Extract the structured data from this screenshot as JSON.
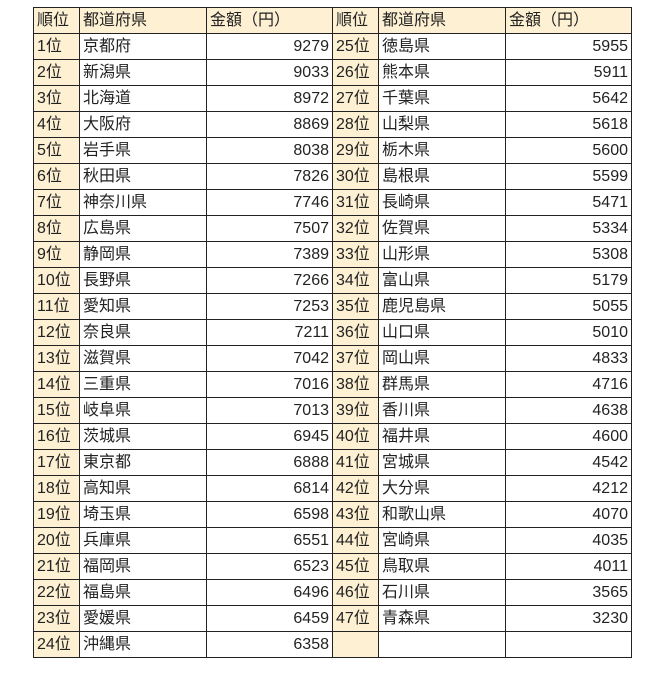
{
  "header": {
    "rank": "順位",
    "prefecture": "都道府県",
    "amount": "金額（円）"
  },
  "left": [
    {
      "rank": "1位",
      "prefecture": "京都府",
      "amount": "9279"
    },
    {
      "rank": "2位",
      "prefecture": "新潟県",
      "amount": "9033"
    },
    {
      "rank": "3位",
      "prefecture": "北海道",
      "amount": "8972"
    },
    {
      "rank": "4位",
      "prefecture": "大阪府",
      "amount": "8869"
    },
    {
      "rank": "5位",
      "prefecture": "岩手県",
      "amount": "8038"
    },
    {
      "rank": "6位",
      "prefecture": "秋田県",
      "amount": "7826"
    },
    {
      "rank": "7位",
      "prefecture": "神奈川県",
      "amount": "7746"
    },
    {
      "rank": "8位",
      "prefecture": "広島県",
      "amount": "7507"
    },
    {
      "rank": "9位",
      "prefecture": "静岡県",
      "amount": "7389"
    },
    {
      "rank": "10位",
      "prefecture": "長野県",
      "amount": "7266"
    },
    {
      "rank": "11位",
      "prefecture": "愛知県",
      "amount": "7253"
    },
    {
      "rank": "12位",
      "prefecture": "奈良県",
      "amount": "7211"
    },
    {
      "rank": "13位",
      "prefecture": "滋賀県",
      "amount": "7042"
    },
    {
      "rank": "14位",
      "prefecture": "三重県",
      "amount": "7016"
    },
    {
      "rank": "15位",
      "prefecture": "岐阜県",
      "amount": "7013"
    },
    {
      "rank": "16位",
      "prefecture": "茨城県",
      "amount": "6945"
    },
    {
      "rank": "17位",
      "prefecture": "東京都",
      "amount": "6888"
    },
    {
      "rank": "18位",
      "prefecture": "高知県",
      "amount": "6814"
    },
    {
      "rank": "19位",
      "prefecture": "埼玉県",
      "amount": "6598"
    },
    {
      "rank": "20位",
      "prefecture": "兵庫県",
      "amount": "6551"
    },
    {
      "rank": "21位",
      "prefecture": "福岡県",
      "amount": "6523"
    },
    {
      "rank": "22位",
      "prefecture": "福島県",
      "amount": "6496"
    },
    {
      "rank": "23位",
      "prefecture": "愛媛県",
      "amount": "6459"
    },
    {
      "rank": "24位",
      "prefecture": "沖縄県",
      "amount": "6358"
    }
  ],
  "right": [
    {
      "rank": "25位",
      "prefecture": "徳島県",
      "amount": "5955"
    },
    {
      "rank": "26位",
      "prefecture": "熊本県",
      "amount": "5911"
    },
    {
      "rank": "27位",
      "prefecture": "千葉県",
      "amount": "5642"
    },
    {
      "rank": "28位",
      "prefecture": "山梨県",
      "amount": "5618"
    },
    {
      "rank": "29位",
      "prefecture": "栃木県",
      "amount": "5600"
    },
    {
      "rank": "30位",
      "prefecture": "島根県",
      "amount": "5599"
    },
    {
      "rank": "31位",
      "prefecture": "長崎県",
      "amount": "5471"
    },
    {
      "rank": "32位",
      "prefecture": "佐賀県",
      "amount": "5334"
    },
    {
      "rank": "33位",
      "prefecture": "山形県",
      "amount": "5308"
    },
    {
      "rank": "34位",
      "prefecture": "富山県",
      "amount": "5179"
    },
    {
      "rank": "35位",
      "prefecture": "鹿児島県",
      "amount": "5055"
    },
    {
      "rank": "36位",
      "prefecture": "山口県",
      "amount": "5010"
    },
    {
      "rank": "37位",
      "prefecture": "岡山県",
      "amount": "4833"
    },
    {
      "rank": "38位",
      "prefecture": "群馬県",
      "amount": "4716"
    },
    {
      "rank": "39位",
      "prefecture": "香川県",
      "amount": "4638"
    },
    {
      "rank": "40位",
      "prefecture": "福井県",
      "amount": "4600"
    },
    {
      "rank": "41位",
      "prefecture": "宮城県",
      "amount": "4542"
    },
    {
      "rank": "42位",
      "prefecture": "大分県",
      "amount": "4212"
    },
    {
      "rank": "43位",
      "prefecture": "和歌山県",
      "amount": "4070"
    },
    {
      "rank": "44位",
      "prefecture": "宮崎県",
      "amount": "4035"
    },
    {
      "rank": "45位",
      "prefecture": "鳥取県",
      "amount": "4011"
    },
    {
      "rank": "46位",
      "prefecture": "石川県",
      "amount": "3565"
    },
    {
      "rank": "47位",
      "prefecture": "青森県",
      "amount": "3230"
    }
  ],
  "colors": {
    "header_bg": "#fdf0d3",
    "border": "#222222"
  }
}
